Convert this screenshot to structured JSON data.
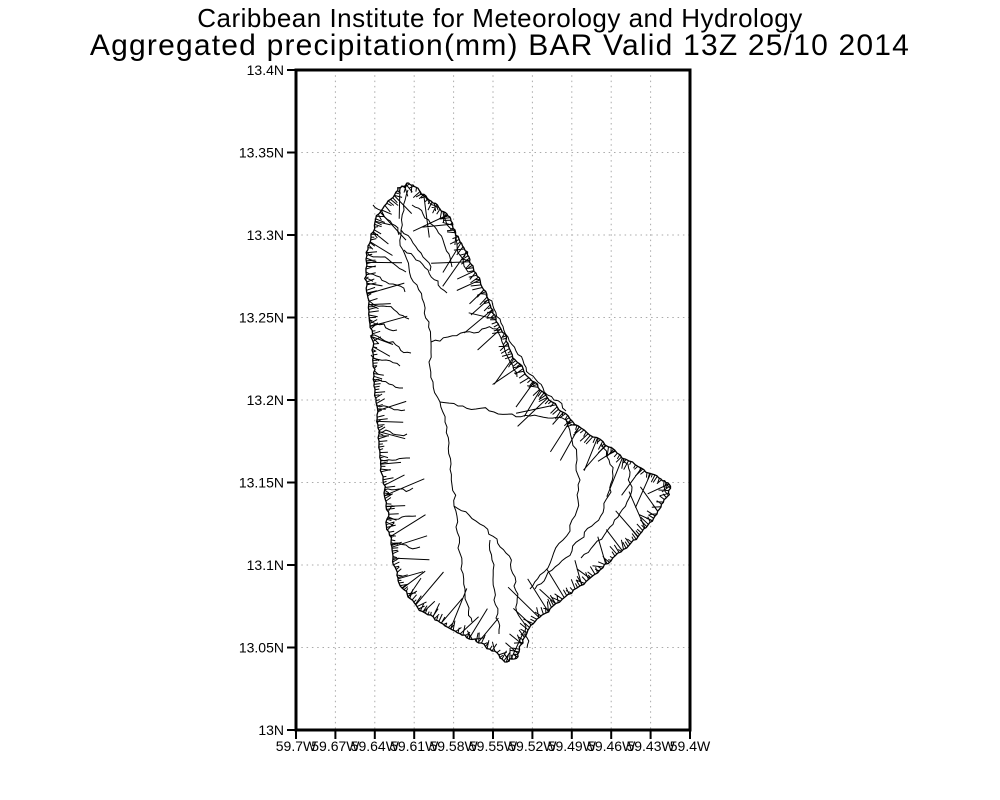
{
  "header": {
    "line1": "Caribbean Institute for Meteorology and Hydrology",
    "line2": "Aggregated precipitation(mm) BAR Valid 13Z 25/10 2014"
  },
  "plot": {
    "region_code": "BAR",
    "y_axis": {
      "name": "latitude",
      "labels": [
        "13.4N",
        "13.35N",
        "13.3N",
        "13.25N",
        "13.2N",
        "13.15N",
        "13.1N",
        "13.05N",
        "13N"
      ]
    },
    "x_axis": {
      "name": "longitude",
      "labels": [
        "59.7W",
        "59.67W",
        "59.64W",
        "59.61W",
        "59.58W",
        "59.55W",
        "59.52W",
        "59.49W",
        "59.46W",
        "59.43W",
        "59.4W"
      ]
    },
    "colors": {
      "frame": "#000000",
      "grid": "#aaaaaa",
      "land_outline": "#000000",
      "background": "#ffffff",
      "text": "#000000"
    }
  },
  "map_geometry": {
    "island": "Barbados",
    "coastline": [
      [
        407,
        183
      ],
      [
        413,
        185
      ],
      [
        419,
        190
      ],
      [
        426,
        196
      ],
      [
        433,
        203
      ],
      [
        440,
        209
      ],
      [
        447,
        214
      ],
      [
        451,
        221
      ],
      [
        455,
        230
      ],
      [
        459,
        239
      ],
      [
        464,
        248
      ],
      [
        469,
        257
      ],
      [
        473,
        266
      ],
      [
        477,
        276
      ],
      [
        482,
        287
      ],
      [
        487,
        297
      ],
      [
        491,
        308
      ],
      [
        496,
        318
      ],
      [
        501,
        329
      ],
      [
        506,
        341
      ],
      [
        511,
        352
      ],
      [
        517,
        362
      ],
      [
        524,
        372
      ],
      [
        532,
        381
      ],
      [
        540,
        390
      ],
      [
        549,
        400
      ],
      [
        559,
        410
      ],
      [
        570,
        419
      ],
      [
        581,
        428
      ],
      [
        593,
        437
      ],
      [
        605,
        445
      ],
      [
        617,
        453
      ],
      [
        629,
        461
      ],
      [
        641,
        468
      ],
      [
        652,
        474
      ],
      [
        661,
        479
      ],
      [
        668,
        483
      ],
      [
        669,
        490
      ],
      [
        666,
        498
      ],
      [
        661,
        507
      ],
      [
        655,
        516
      ],
      [
        648,
        525
      ],
      [
        640,
        534
      ],
      [
        631,
        543
      ],
      [
        621,
        552
      ],
      [
        611,
        561
      ],
      [
        600,
        570
      ],
      [
        589,
        579
      ],
      [
        577,
        588
      ],
      [
        565,
        597
      ],
      [
        553,
        606
      ],
      [
        542,
        615
      ],
      [
        533,
        624
      ],
      [
        527,
        633
      ],
      [
        523,
        643
      ],
      [
        519,
        652
      ],
      [
        514,
        659
      ],
      [
        507,
        662
      ],
      [
        500,
        658
      ],
      [
        492,
        651
      ],
      [
        484,
        644
      ],
      [
        475,
        639
      ],
      [
        465,
        635
      ],
      [
        455,
        631
      ],
      [
        445,
        626
      ],
      [
        435,
        620
      ],
      [
        425,
        613
      ],
      [
        416,
        605
      ],
      [
        408,
        597
      ],
      [
        402,
        588
      ],
      [
        398,
        578
      ],
      [
        395,
        567
      ],
      [
        393,
        556
      ],
      [
        391,
        544
      ],
      [
        389,
        532
      ],
      [
        387,
        519
      ],
      [
        386,
        506
      ],
      [
        384,
        493
      ],
      [
        383,
        480
      ],
      [
        381,
        467
      ],
      [
        380,
        454
      ],
      [
        379,
        441
      ],
      [
        378,
        428
      ],
      [
        377,
        415
      ],
      [
        376,
        402
      ],
      [
        375,
        389
      ],
      [
        374,
        376
      ],
      [
        373,
        363
      ],
      [
        372,
        350
      ],
      [
        371,
        337
      ],
      [
        370,
        324
      ],
      [
        369,
        311
      ],
      [
        368,
        298
      ],
      [
        367,
        285
      ],
      [
        366,
        272
      ],
      [
        366,
        259
      ],
      [
        368,
        246
      ],
      [
        371,
        234
      ],
      [
        375,
        222
      ],
      [
        381,
        211
      ],
      [
        388,
        201
      ],
      [
        396,
        192
      ],
      [
        402,
        186
      ]
    ],
    "watershed_lines": [
      [
        [
          408,
          190
        ],
        [
          404,
          210
        ],
        [
          401,
          230
        ],
        [
          403,
          250
        ],
        [
          409,
          268
        ],
        [
          417,
          285
        ],
        [
          424,
          303
        ],
        [
          429,
          322
        ],
        [
          431,
          342
        ],
        [
          429,
          362
        ],
        [
          433,
          382
        ],
        [
          440,
          402
        ]
      ],
      [
        [
          440,
          402
        ],
        [
          445,
          422
        ],
        [
          449,
          443
        ],
        [
          451,
          464
        ],
        [
          452,
          485
        ],
        [
          454,
          506
        ],
        [
          456,
          527
        ],
        [
          458,
          548
        ],
        [
          461,
          569
        ],
        [
          465,
          589
        ],
        [
          469,
          608
        ],
        [
          472,
          622
        ]
      ],
      [
        [
          431,
          342
        ],
        [
          448,
          337
        ],
        [
          465,
          332
        ],
        [
          482,
          329
        ],
        [
          497,
          329
        ]
      ],
      [
        [
          440,
          402
        ],
        [
          458,
          406
        ],
        [
          476,
          409
        ],
        [
          494,
          412
        ],
        [
          512,
          414
        ],
        [
          530,
          416
        ],
        [
          548,
          418
        ],
        [
          566,
          420
        ],
        [
          580,
          427
        ]
      ],
      [
        [
          486,
          295
        ],
        [
          494,
          309
        ],
        [
          501,
          323
        ],
        [
          508,
          337
        ],
        [
          516,
          351
        ],
        [
          524,
          364
        ],
        [
          533,
          376
        ],
        [
          543,
          388
        ],
        [
          554,
          400
        ],
        [
          566,
          411
        ]
      ],
      [
        [
          412,
          205
        ],
        [
          423,
          214
        ],
        [
          434,
          226
        ],
        [
          443,
          240
        ],
        [
          449,
          254
        ],
        [
          452,
          267
        ]
      ],
      [
        [
          401,
          230
        ],
        [
          413,
          243
        ],
        [
          423,
          257
        ],
        [
          430,
          271
        ]
      ],
      [
        [
          443,
          212
        ],
        [
          450,
          228
        ],
        [
          457,
          244
        ],
        [
          463,
          259
        ],
        [
          468,
          272
        ]
      ],
      [
        [
          373,
          205
        ],
        [
          383,
          214
        ],
        [
          392,
          224
        ],
        [
          399,
          235
        ]
      ],
      [
        [
          367,
          252
        ],
        [
          381,
          257
        ],
        [
          394,
          264
        ],
        [
          406,
          272
        ]
      ],
      [
        [
          366,
          272
        ],
        [
          380,
          277
        ],
        [
          393,
          284
        ],
        [
          405,
          292
        ]
      ],
      [
        [
          368,
          300
        ],
        [
          383,
          306
        ],
        [
          397,
          312
        ],
        [
          409,
          319
        ]
      ],
      [
        [
          369,
          318
        ],
        [
          384,
          324
        ],
        [
          397,
          330
        ]
      ],
      [
        [
          370,
          336
        ],
        [
          385,
          341
        ],
        [
          399,
          347
        ],
        [
          411,
          353
        ]
      ],
      [
        [
          371,
          355
        ],
        [
          386,
          360
        ],
        [
          400,
          366
        ]
      ],
      [
        [
          374,
          380
        ],
        [
          389,
          384
        ],
        [
          403,
          388
        ]
      ],
      [
        [
          376,
          405
        ],
        [
          391,
          408
        ],
        [
          405,
          410
        ]
      ],
      [
        [
          378,
          432
        ],
        [
          393,
          434
        ],
        [
          407,
          434
        ]
      ],
      [
        [
          381,
          460
        ],
        [
          396,
          460
        ],
        [
          410,
          458
        ]
      ],
      [
        [
          384,
          490
        ],
        [
          399,
          489
        ],
        [
          413,
          488
        ]
      ],
      [
        [
          387,
          518
        ],
        [
          402,
          517
        ],
        [
          416,
          516
        ]
      ],
      [
        [
          391,
          545
        ],
        [
          406,
          545
        ],
        [
          420,
          547
        ]
      ],
      [
        [
          454,
          506
        ],
        [
          469,
          515
        ],
        [
          484,
          526
        ],
        [
          497,
          539
        ],
        [
          506,
          553
        ],
        [
          511,
          569
        ],
        [
          514,
          586
        ],
        [
          517,
          603
        ],
        [
          521,
          619
        ],
        [
          525,
          635
        ],
        [
          527,
          648
        ]
      ],
      [
        [
          601,
          444
        ],
        [
          609,
          460
        ],
        [
          613,
          476
        ],
        [
          611,
          492
        ],
        [
          604,
          508
        ],
        [
          595,
          523
        ],
        [
          584,
          537
        ],
        [
          572,
          551
        ],
        [
          559,
          564
        ],
        [
          546,
          577
        ],
        [
          535,
          589
        ]
      ],
      [
        [
          623,
          458
        ],
        [
          630,
          472
        ],
        [
          632,
          487
        ],
        [
          627,
          502
        ],
        [
          618,
          517
        ],
        [
          607,
          531
        ],
        [
          594,
          545
        ],
        [
          581,
          558
        ]
      ],
      [
        [
          497,
          329
        ],
        [
          504,
          346
        ],
        [
          510,
          362
        ],
        [
          517,
          377
        ]
      ],
      [
        [
          490,
          540
        ],
        [
          492,
          560
        ],
        [
          493,
          580
        ],
        [
          494,
          600
        ],
        [
          496,
          618
        ],
        [
          499,
          634
        ]
      ],
      [
        [
          420,
          193
        ],
        [
          429,
          202
        ],
        [
          438,
          210
        ]
      ],
      [
        [
          404,
          250
        ],
        [
          416,
          260
        ],
        [
          428,
          270
        ],
        [
          438,
          281
        ],
        [
          447,
          293
        ]
      ],
      [
        [
          566,
          420
        ],
        [
          572,
          440
        ],
        [
          577,
          460
        ],
        [
          580,
          480
        ],
        [
          578,
          500
        ],
        [
          572,
          520
        ],
        [
          563,
          540
        ],
        [
          552,
          558
        ],
        [
          540,
          575
        ],
        [
          530,
          589
        ]
      ]
    ]
  }
}
